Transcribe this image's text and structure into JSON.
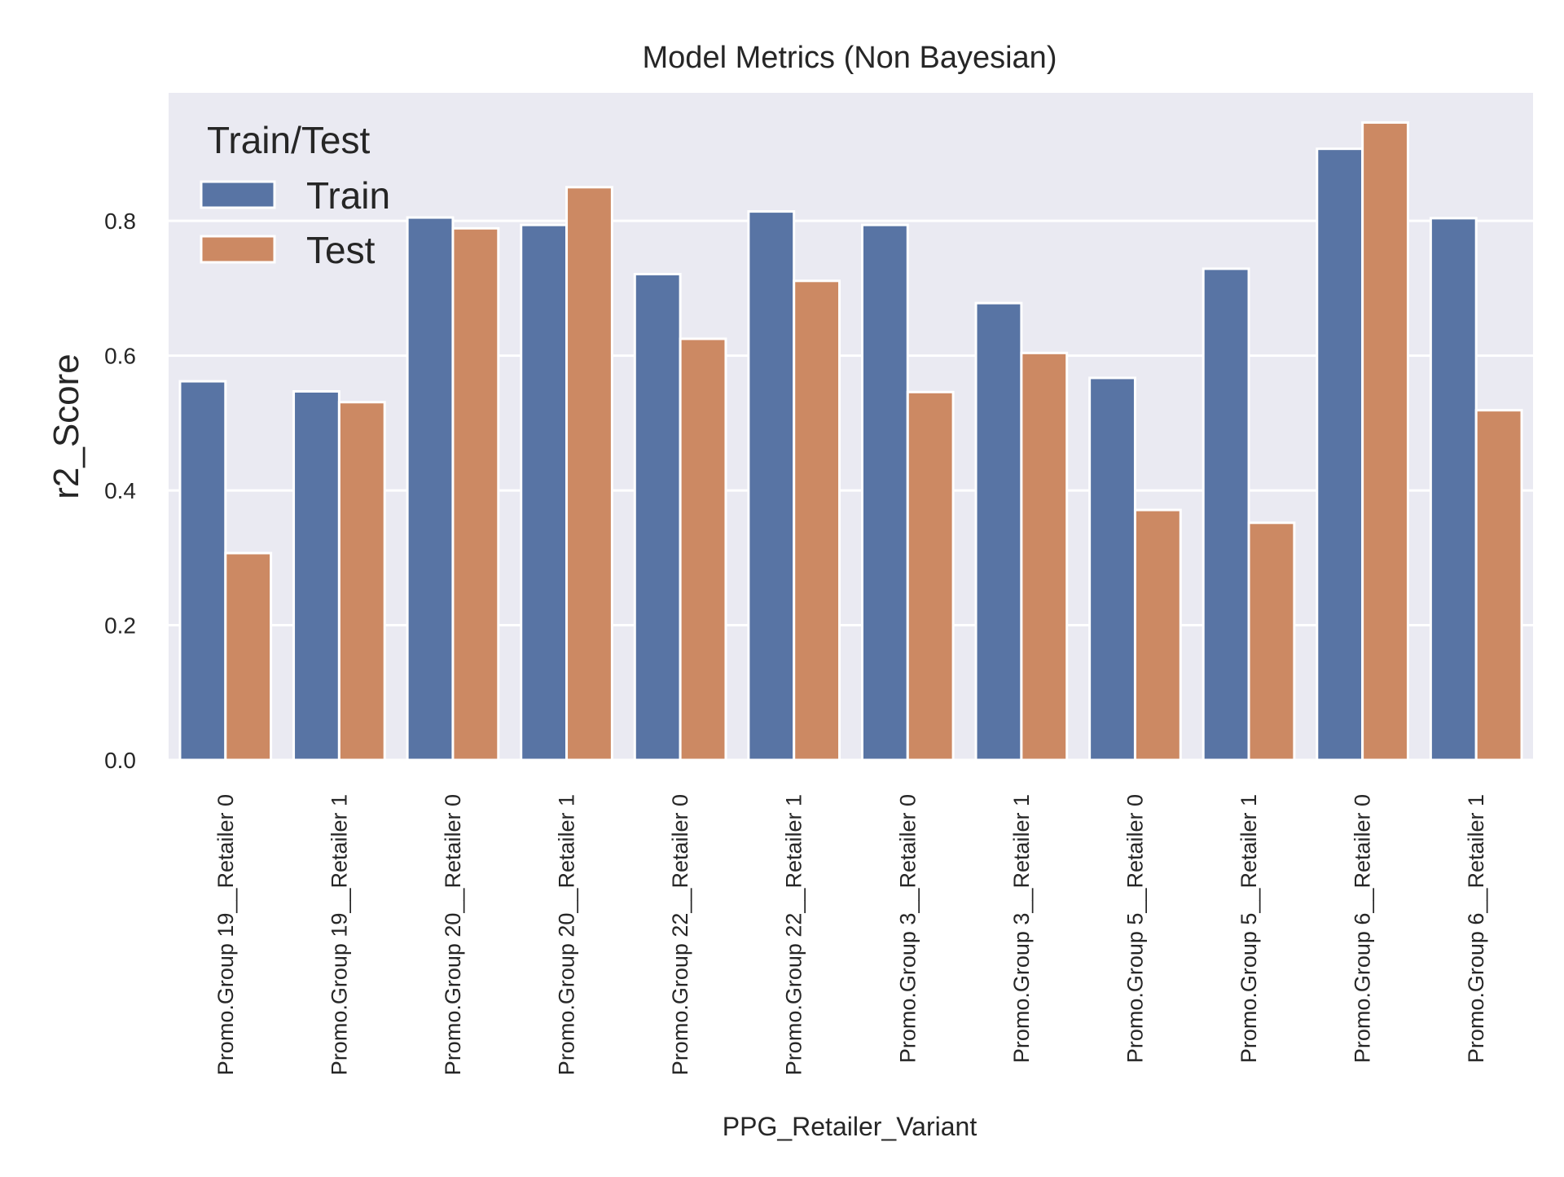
{
  "chart_data": {
    "type": "bar",
    "title": "Model Metrics (Non Bayesian)",
    "xlabel": "PPG_Retailer_Variant",
    "ylabel": "r2_Score",
    "ylim": [
      0,
      0.99
    ],
    "yticks": [
      "0.0",
      "0.2",
      "0.4",
      "0.6",
      "0.8"
    ],
    "grid": true,
    "legend": {
      "title": "Train/Test",
      "placement": "top-left"
    },
    "categories": [
      "Promo.Group 19__Retailer 0",
      "Promo.Group 19__Retailer 1",
      "Promo.Group 20__Retailer 0",
      "Promo.Group 20__Retailer 1",
      "Promo.Group 22__Retailer 0",
      "Promo.Group 22__Retailer 1",
      "Promo.Group 3__Retailer 0",
      "Promo.Group 3__Retailer 1",
      "Promo.Group 5__Retailer 0",
      "Promo.Group 5__Retailer 1",
      "Promo.Group 6__Retailer 0",
      "Promo.Group 6__Retailer 1"
    ],
    "series": [
      {
        "name": "Train",
        "color": "#5874a4",
        "values": [
          0.562,
          0.547,
          0.805,
          0.794,
          0.721,
          0.814,
          0.794,
          0.678,
          0.567,
          0.729,
          0.907,
          0.804
        ]
      },
      {
        "name": "Test",
        "color": "#cc8963",
        "values": [
          0.307,
          0.531,
          0.789,
          0.85,
          0.625,
          0.711,
          0.546,
          0.604,
          0.371,
          0.352,
          0.946,
          0.519
        ]
      }
    ]
  }
}
